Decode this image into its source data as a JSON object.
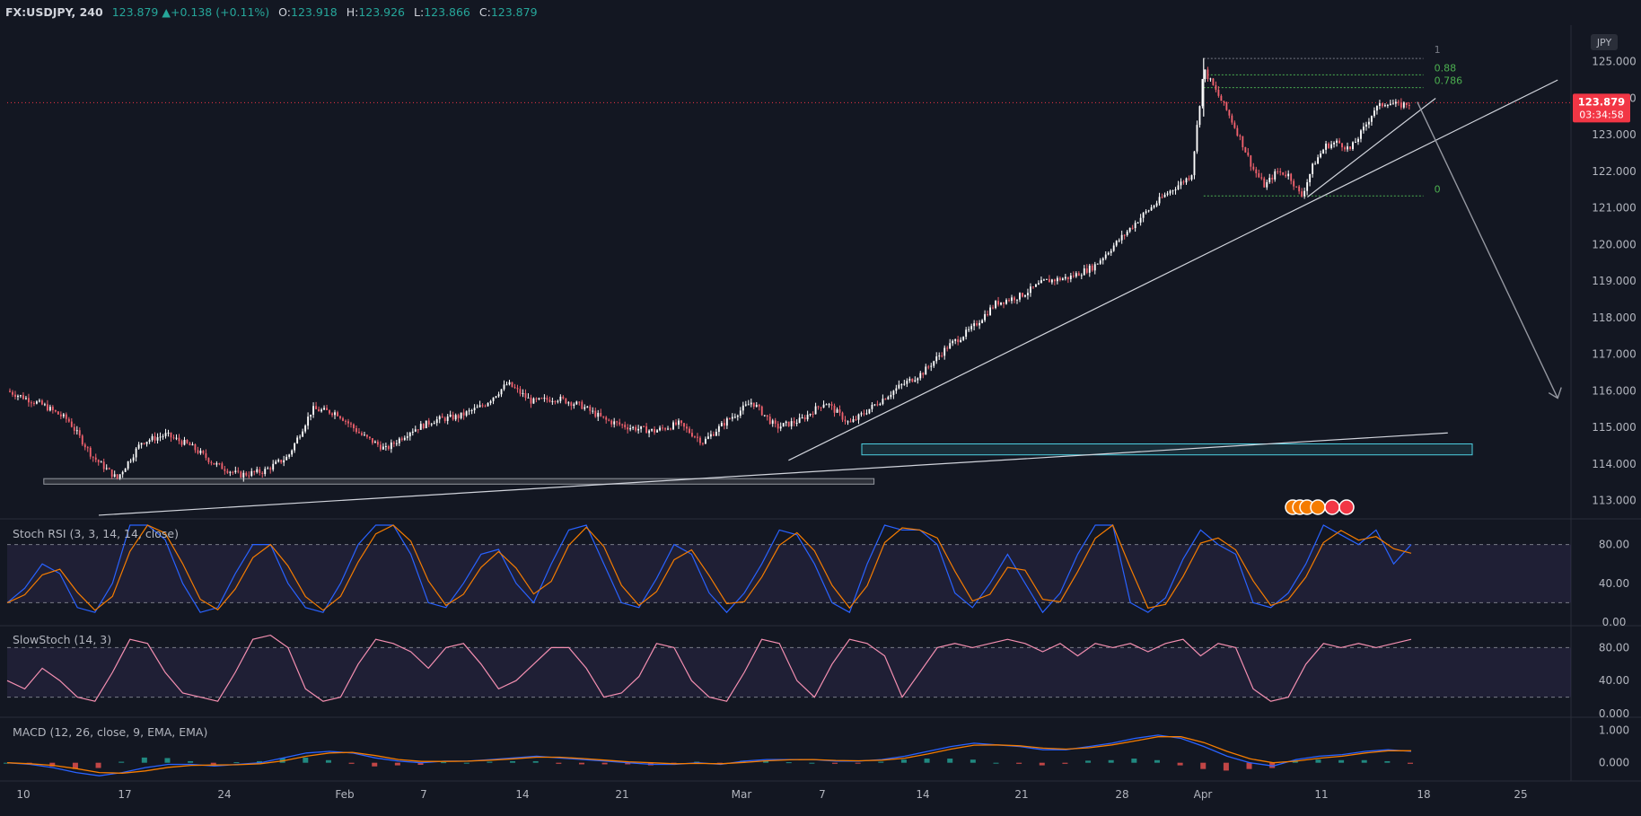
{
  "header": {
    "symbol": "FX:USDJPY",
    "interval": "240",
    "last": "123.879",
    "arrow": "▲",
    "change": "+0.138 (+0.11%)",
    "o_label": "O:",
    "o_value": "123.918",
    "h_label": "H:",
    "h_value": "123.926",
    "l_label": "L:",
    "l_value": "123.866",
    "c_label": "C:",
    "c_value": "123.879"
  },
  "colors": {
    "background": "#131722",
    "up_candle": "#ffffff",
    "down_candle": "#f0616d",
    "stoch_k": "#2962ff",
    "stoch_d": "#f57c00",
    "slowstoch": "#f48fb1",
    "macd_line": "#2962ff",
    "signal_line": "#f57c00",
    "hist_pos": "#26a69a",
    "hist_neg": "#ef5350",
    "price_tag": "#f23645",
    "zone": "#4dd0e1"
  },
  "chart_data": {
    "type": "candlestick",
    "symbol": "FX:USDJPY",
    "timeframe": "240",
    "currency_label": "JPY",
    "price_axis": {
      "range": [
        112.5,
        126.0
      ],
      "ticks": [
        "125.000",
        "124.000",
        "123.000",
        "122.000",
        "121.000",
        "120.000",
        "119.000",
        "118.000",
        "117.000",
        "116.000",
        "115.000",
        "114.000",
        "113.000"
      ]
    },
    "current_price": "123.879",
    "countdown": "03:34:58",
    "time_axis": [
      "10",
      "17",
      "24",
      "Feb",
      "7",
      "14",
      "21",
      "Mar",
      "7",
      "14",
      "21",
      "28",
      "Apr",
      "11",
      "18",
      "25"
    ],
    "price_path": [
      [
        0,
        116.0
      ],
      [
        3,
        115.6
      ],
      [
        5,
        115.2
      ],
      [
        7,
        114.2
      ],
      [
        9,
        113.6
      ],
      [
        11,
        114.6
      ],
      [
        13,
        114.8
      ],
      [
        15,
        114.5
      ],
      [
        17,
        114.0
      ],
      [
        19,
        113.7
      ],
      [
        21,
        113.8
      ],
      [
        23,
        114.2
      ],
      [
        25,
        115.5
      ],
      [
        27,
        115.4
      ],
      [
        29,
        114.8
      ],
      [
        31,
        114.4
      ],
      [
        33,
        114.9
      ],
      [
        35,
        115.2
      ],
      [
        37,
        115.3
      ],
      [
        39,
        115.6
      ],
      [
        41,
        116.2
      ],
      [
        43,
        115.7
      ],
      [
        45,
        115.8
      ],
      [
        47,
        115.6
      ],
      [
        49,
        115.2
      ],
      [
        51,
        115.0
      ],
      [
        53,
        114.9
      ],
      [
        55,
        115.1
      ],
      [
        57,
        114.6
      ],
      [
        59,
        115.2
      ],
      [
        61,
        115.7
      ],
      [
        63,
        115.0
      ],
      [
        65,
        115.2
      ],
      [
        67,
        115.7
      ],
      [
        69,
        115.1
      ],
      [
        71,
        115.6
      ],
      [
        73,
        116.1
      ],
      [
        75,
        116.5
      ],
      [
        77,
        117.2
      ],
      [
        79,
        117.7
      ],
      [
        81,
        118.4
      ],
      [
        83,
        118.6
      ],
      [
        85,
        119.0
      ],
      [
        87,
        119.1
      ],
      [
        89,
        119.4
      ],
      [
        91,
        120.1
      ],
      [
        93,
        120.8
      ],
      [
        95,
        121.4
      ],
      [
        97,
        121.9
      ],
      [
        98,
        124.8
      ],
      [
        99,
        124.2
      ],
      [
        100,
        123.6
      ],
      [
        101,
        122.9
      ],
      [
        102,
        122.1
      ],
      [
        103,
        121.6
      ],
      [
        104,
        122.0
      ],
      [
        105,
        121.9
      ],
      [
        106,
        121.3
      ],
      [
        107,
        122.2
      ],
      [
        108,
        122.7
      ],
      [
        109,
        122.8
      ],
      [
        110,
        122.6
      ],
      [
        111,
        123.1
      ],
      [
        112,
        123.7
      ],
      [
        113,
        123.9
      ],
      [
        114,
        123.8
      ],
      [
        115,
        123.879
      ]
    ],
    "fibonacci": {
      "levels": [
        {
          "label": "1",
          "price": 125.09
        },
        {
          "label": "0.88",
          "price": 124.64
        },
        {
          "label": "0.786",
          "price": 124.29
        },
        {
          "label": "0",
          "price": 121.33
        }
      ]
    },
    "zones": [
      {
        "name": "demand-zone",
        "from": 114.25,
        "to": 114.55
      },
      {
        "name": "support-zone",
        "from": 113.45,
        "to": 113.6
      }
    ],
    "indicators": {
      "stoch_rsi": {
        "title": "Stoch RSI (3, 3, 14, 14, close)",
        "ticks": [
          "80.00",
          "40.00",
          "0.00"
        ],
        "range": [
          0,
          100
        ],
        "bands": [
          20,
          80
        ],
        "k": [
          20,
          35,
          60,
          50,
          15,
          10,
          40,
          100,
          100,
          85,
          40,
          10,
          15,
          50,
          80,
          80,
          40,
          15,
          10,
          40,
          80,
          100,
          100,
          70,
          20,
          15,
          40,
          70,
          75,
          40,
          20,
          60,
          95,
          100,
          60,
          20,
          15,
          45,
          80,
          70,
          30,
          10,
          30,
          60,
          95,
          90,
          60,
          20,
          10,
          60,
          100,
          95,
          95,
          80,
          30,
          15,
          40,
          70,
          40,
          10,
          30,
          70,
          100,
          100,
          20,
          10,
          25,
          65,
          95,
          80,
          70,
          20,
          15,
          30,
          60,
          100,
          90,
          80,
          95,
          60,
          80
        ]
      },
      "slow_stoch": {
        "title": "SlowStoch (14, 3)",
        "ticks": [
          "80.00",
          "40.00",
          "0.000"
        ],
        "range": [
          0,
          100
        ],
        "bands": [
          20,
          80
        ],
        "k": [
          40,
          30,
          55,
          40,
          20,
          15,
          50,
          90,
          85,
          50,
          25,
          20,
          15,
          50,
          90,
          95,
          80,
          30,
          15,
          20,
          60,
          90,
          85,
          75,
          55,
          80,
          85,
          60,
          30,
          40,
          60,
          80,
          80,
          55,
          20,
          25,
          45,
          85,
          80,
          40,
          20,
          15,
          50,
          90,
          85,
          40,
          20,
          60,
          90,
          85,
          70,
          20,
          50,
          80,
          85,
          80,
          85,
          90,
          85,
          75,
          85,
          70,
          85,
          80,
          85,
          75,
          85,
          90,
          70,
          85,
          80,
          30,
          15,
          20,
          60,
          85,
          80,
          85,
          80,
          85,
          90
        ]
      },
      "macd": {
        "title": "MACD (12, 26, close, 9, EMA, EMA)",
        "ticks": [
          "1.000",
          "0.000"
        ],
        "range": [
          -0.45,
          1.15
        ],
        "macd": [
          0,
          -0.05,
          -0.15,
          -0.3,
          -0.4,
          -0.3,
          -0.15,
          -0.05,
          -0.05,
          -0.1,
          -0.05,
          0,
          0.15,
          0.3,
          0.35,
          0.3,
          0.15,
          0.05,
          0,
          0.05,
          0.05,
          0.1,
          0.15,
          0.2,
          0.15,
          0.1,
          0.05,
          0,
          -0.05,
          -0.05,
          0,
          -0.05,
          0.05,
          0.1,
          0.1,
          0.1,
          0.05,
          0.05,
          0.1,
          0.2,
          0.35,
          0.5,
          0.6,
          0.55,
          0.5,
          0.4,
          0.4,
          0.5,
          0.6,
          0.75,
          0.85,
          0.75,
          0.5,
          0.2,
          0.0,
          -0.1,
          0.1,
          0.2,
          0.25,
          0.35,
          0.4,
          0.35
        ],
        "signal": [
          0,
          -0.03,
          -0.08,
          -0.18,
          -0.3,
          -0.32,
          -0.25,
          -0.14,
          -0.08,
          -0.07,
          -0.06,
          -0.03,
          0.06,
          0.2,
          0.3,
          0.32,
          0.22,
          0.1,
          0.04,
          0.04,
          0.05,
          0.08,
          0.12,
          0.17,
          0.17,
          0.13,
          0.08,
          0.03,
          0,
          -0.03,
          -0.02,
          -0.03,
          0.01,
          0.06,
          0.09,
          0.1,
          0.07,
          0.06,
          0.08,
          0.14,
          0.27,
          0.42,
          0.54,
          0.55,
          0.52,
          0.45,
          0.42,
          0.46,
          0.55,
          0.67,
          0.8,
          0.8,
          0.62,
          0.35,
          0.12,
          0.0,
          0.05,
          0.14,
          0.2,
          0.3,
          0.37,
          0.37
        ]
      }
    }
  }
}
